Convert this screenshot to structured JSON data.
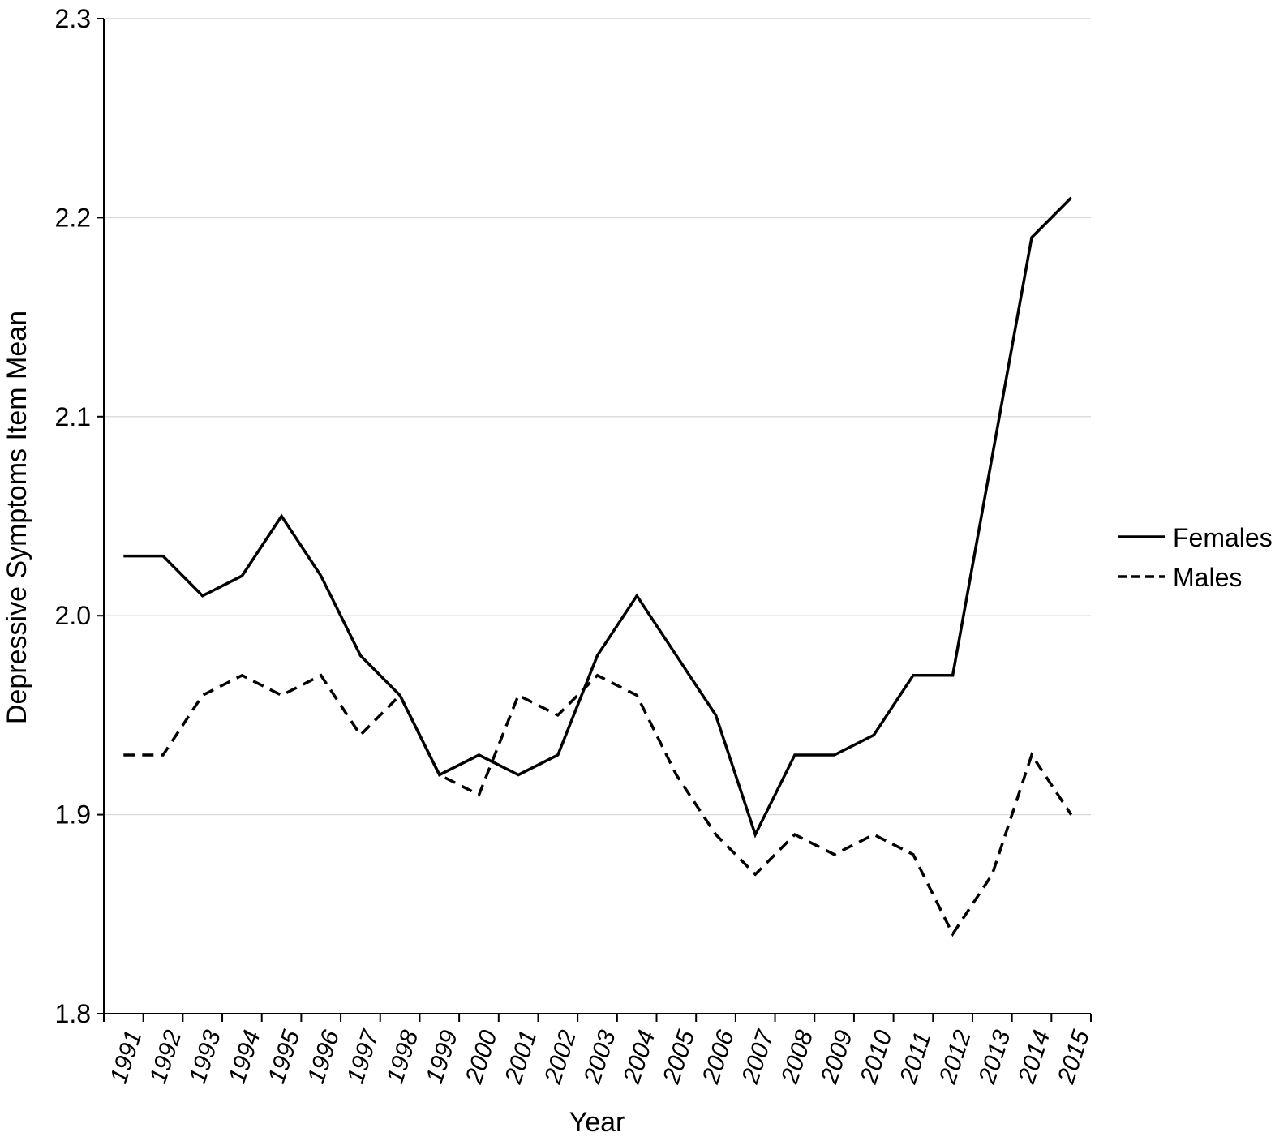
{
  "chart_data": {
    "type": "line",
    "xlabel": "Year",
    "ylabel": "Depressive Symptoms Item Mean",
    "ylim": [
      1.8,
      2.3
    ],
    "yticks": [
      "1.8",
      "1.9",
      "2.0",
      "2.1",
      "2.2",
      "2.3"
    ],
    "grid": "horizontal",
    "legend_position": "right",
    "categories": [
      "1991",
      "1992",
      "1993",
      "1994",
      "1995",
      "1996",
      "1997",
      "1998",
      "1999",
      "2000",
      "2001",
      "2002",
      "2003",
      "2004",
      "2005",
      "2006",
      "2007",
      "2008",
      "2009",
      "2010",
      "2011",
      "2012",
      "2013",
      "2014",
      "2015"
    ],
    "series": [
      {
        "name": "Females",
        "style": "solid",
        "color": "#000000",
        "values": [
          2.03,
          2.03,
          2.01,
          2.02,
          2.05,
          2.02,
          1.98,
          1.96,
          1.92,
          1.93,
          1.92,
          1.93,
          1.98,
          2.01,
          1.98,
          1.95,
          1.89,
          1.93,
          1.93,
          1.94,
          1.97,
          1.97,
          2.08,
          2.19,
          2.21
        ]
      },
      {
        "name": "Males",
        "style": "dashed",
        "color": "#000000",
        "values": [
          1.93,
          1.93,
          1.96,
          1.97,
          1.96,
          1.97,
          1.94,
          1.96,
          1.92,
          1.91,
          1.96,
          1.95,
          1.97,
          1.96,
          1.92,
          1.89,
          1.87,
          1.89,
          1.88,
          1.89,
          1.88,
          1.84,
          1.87,
          1.93,
          1.9
        ]
      }
    ]
  }
}
